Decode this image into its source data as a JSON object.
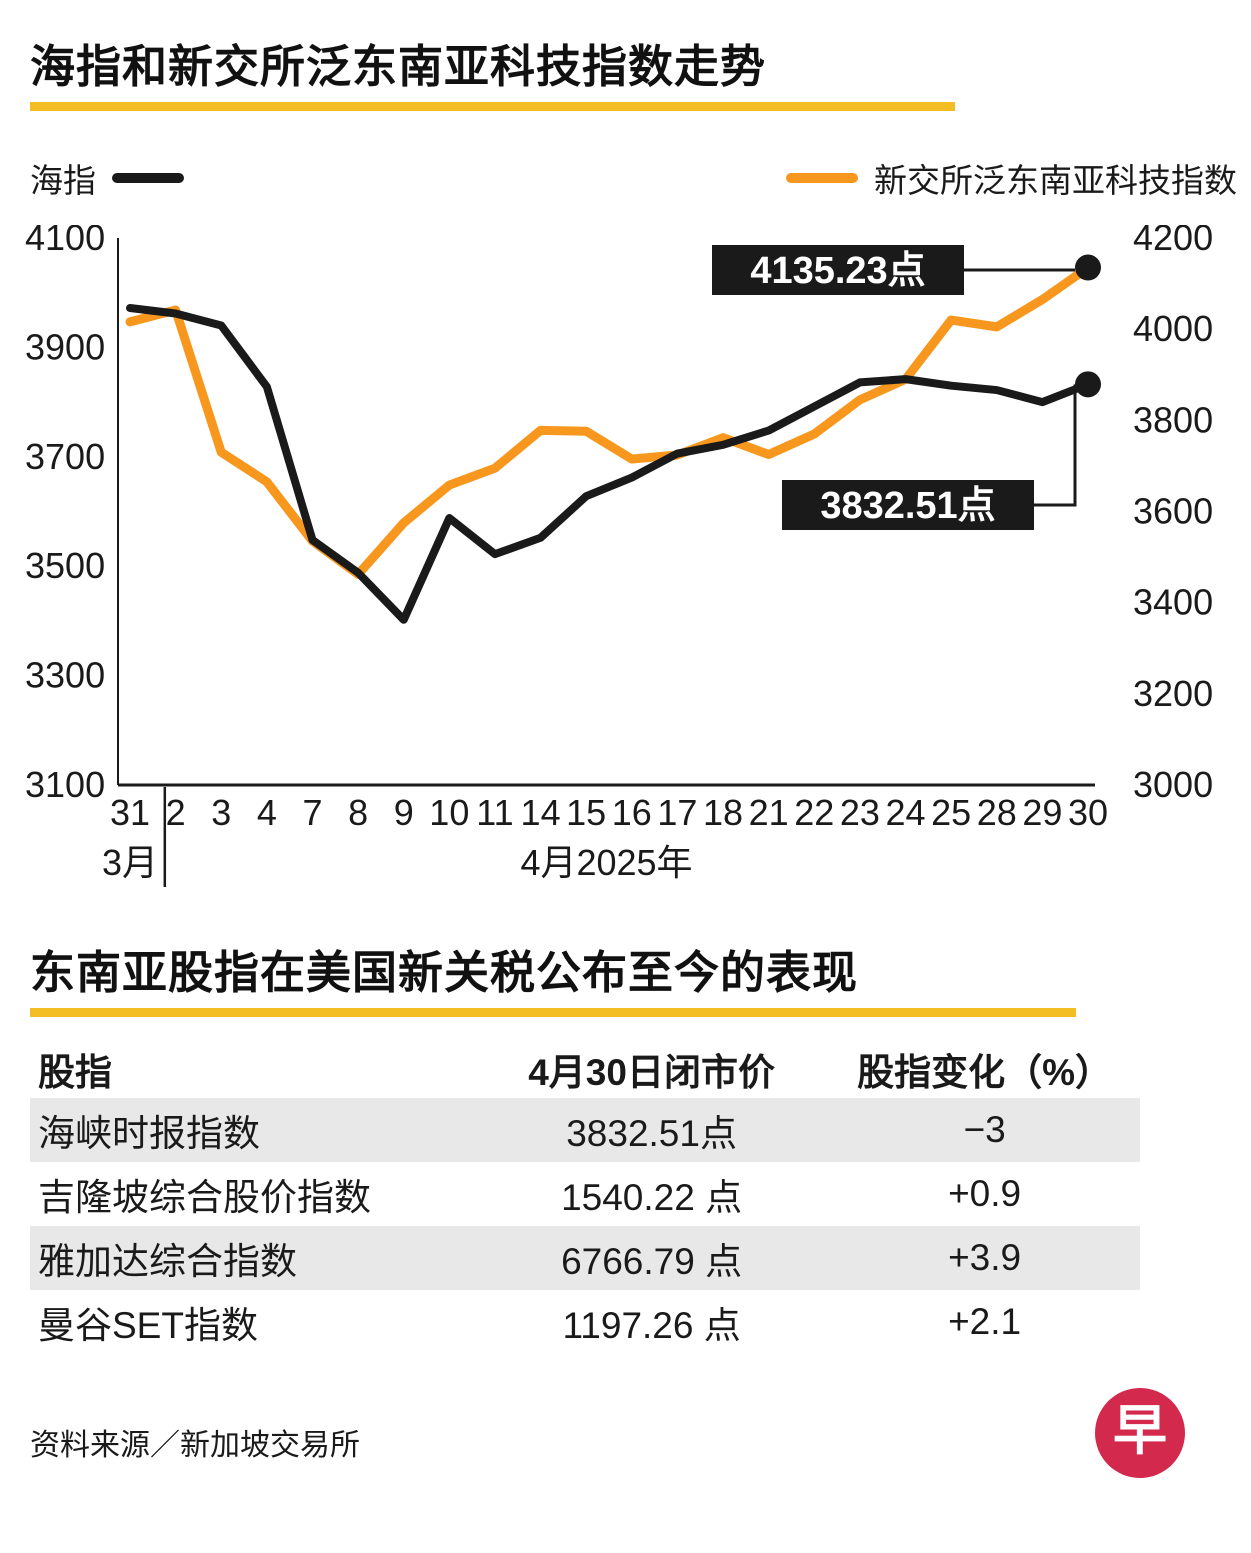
{
  "page": {
    "chart_title": "海指和新交所泛东南亚科技指数走势",
    "table_title": "东南亚股指在美国新关税公布至今的表现",
    "source": "资料来源／新加坡交易所",
    "logo_char": "早"
  },
  "legend": {
    "sti_label": "海指",
    "tech_label": "新交所泛东南亚科技指数"
  },
  "colors": {
    "accent_yellow": "#F2BE24",
    "sti_black": "#1A1A1A",
    "tech_orange": "#F8971D",
    "stripe_gray": "#E8E8E8",
    "logo_red": "#D3294D"
  },
  "chart_data": {
    "type": "line",
    "x_labels": [
      "31",
      "2",
      "3",
      "4",
      "7",
      "8",
      "9",
      "10",
      "11",
      "14",
      "15",
      "16",
      "17",
      "18",
      "21",
      "22",
      "23",
      "24",
      "25",
      "28",
      "29",
      "30"
    ],
    "month_labels": {
      "march": "3月",
      "april": "4月2025年"
    },
    "left_axis": {
      "min": 3100,
      "max": 4100,
      "ticks": [
        3100,
        3300,
        3500,
        3700,
        3900,
        4100
      ]
    },
    "right_axis": {
      "min": 3000,
      "max": 4200,
      "ticks": [
        3000,
        3200,
        3400,
        3600,
        3800,
        4000,
        4200
      ]
    },
    "series": [
      {
        "name": "海指",
        "axis": "left",
        "color_key": "sti_black",
        "values": [
          3972,
          3962,
          3940,
          3828,
          3548,
          3488,
          3402,
          3588,
          3522,
          3552,
          3628,
          3662,
          3706,
          3722,
          3748,
          3792,
          3836,
          3842,
          3830,
          3822,
          3800,
          3832.51
        ]
      },
      {
        "name": "新交所泛东南亚科技指数",
        "axis": "right",
        "color_key": "tech_orange",
        "values": [
          4016,
          4042,
          3730,
          3665,
          3535,
          3462,
          3575,
          3658,
          3695,
          3778,
          3776,
          3715,
          3724,
          3762,
          3725,
          3770,
          3845,
          3890,
          4020,
          4005,
          4065,
          4135.23
        ]
      }
    ],
    "annotations": [
      {
        "label": "4135.23点",
        "series_index": 1
      },
      {
        "label": "3832.51点",
        "series_index": 0
      }
    ]
  },
  "table": {
    "headers": [
      "股指",
      "4月30日闭市价",
      "股指变化（%）"
    ],
    "rows": [
      [
        "海峡时报指数",
        "3832.51点",
        "−3"
      ],
      [
        "吉隆坡综合股价指数",
        "1540.22 点",
        "+0.9"
      ],
      [
        "雅加达综合指数",
        "6766.79 点",
        "+3.9"
      ],
      [
        "曼谷SET指数",
        "1197.26 点",
        "+2.1"
      ]
    ]
  }
}
